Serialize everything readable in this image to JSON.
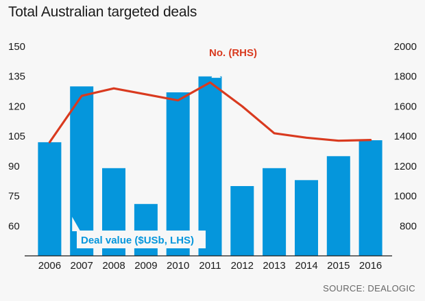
{
  "chart_data": {
    "type": "bar",
    "title": "Total Australian targeted deals",
    "source": "SOURCE: DEALOGIC",
    "categories": [
      "2006",
      "2007",
      "2008",
      "2009",
      "2010",
      "2011",
      "2012",
      "2013",
      "2014",
      "2015",
      "2016"
    ],
    "left_axis": {
      "min": 45,
      "max": 150,
      "ticks": [
        60,
        75,
        90,
        105,
        120,
        135,
        150
      ]
    },
    "right_axis": {
      "min": 600,
      "max": 2000,
      "ticks": [
        800,
        1000,
        1200,
        1400,
        1600,
        1800,
        2000
      ]
    },
    "grid": false,
    "series": [
      {
        "name": "Deal value ($USb, LHS)",
        "type": "bar",
        "axis": "left",
        "color": "#0596dc",
        "values": [
          102,
          130,
          89,
          71,
          127,
          135,
          80,
          89,
          83,
          95,
          103
        ]
      },
      {
        "name": "No. (RHS)",
        "type": "line",
        "axis": "right",
        "color": "#d93a1f",
        "values": [
          1360,
          1670,
          1720,
          1680,
          1640,
          1760,
          1600,
          1420,
          1390,
          1370,
          1375
        ]
      }
    ]
  }
}
